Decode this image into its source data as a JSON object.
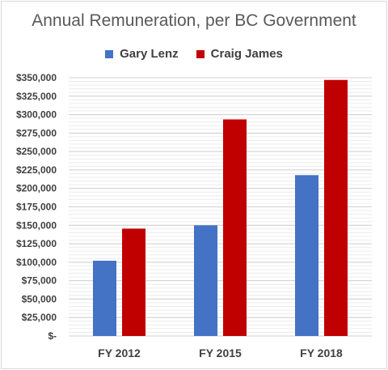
{
  "chart_data": {
    "type": "bar",
    "title": "Annual Remuneration, per BC Government",
    "categories": [
      "FY 2012",
      "FY 2015",
      "FY 2018"
    ],
    "series": [
      {
        "name": "Gary Lenz",
        "color": "#4472c4",
        "values": [
          102000,
          150000,
          218000
        ]
      },
      {
        "name": "Craig James",
        "color": "#c00000",
        "values": [
          145500,
          293500,
          347000
        ]
      }
    ],
    "ylim": [
      0,
      350000
    ],
    "y_ticks": [
      {
        "value": 0,
        "label": "$-"
      },
      {
        "value": 25000,
        "label": "$25,000"
      },
      {
        "value": 50000,
        "label": "$50,000"
      },
      {
        "value": 75000,
        "label": "$75,000"
      },
      {
        "value": 100000,
        "label": "$100,000"
      },
      {
        "value": 125000,
        "label": "$125,000"
      },
      {
        "value": 150000,
        "label": "$150,000"
      },
      {
        "value": 175000,
        "label": "$175,000"
      },
      {
        "value": 200000,
        "label": "$200,000"
      },
      {
        "value": 225000,
        "label": "$225,000"
      },
      {
        "value": 250000,
        "label": "$250,000"
      },
      {
        "value": 275000,
        "label": "$275,000"
      },
      {
        "value": 300000,
        "label": "$300,000"
      },
      {
        "value": 325000,
        "label": "$325,000"
      },
      {
        "value": 350000,
        "label": "$350,000"
      }
    ],
    "grid": true,
    "legend": "top"
  }
}
